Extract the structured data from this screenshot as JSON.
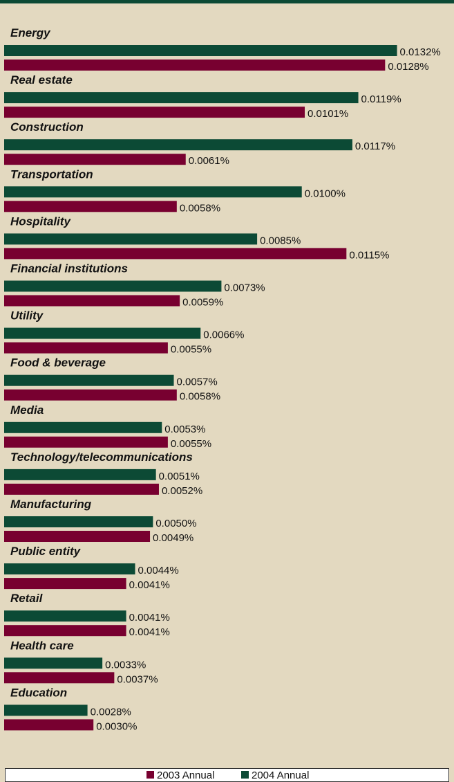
{
  "chart_data": {
    "type": "barh",
    "categories": [
      "Energy",
      "Real estate",
      "Construction",
      "Transportation",
      "Hospitality",
      "Financial institutions",
      "Utility",
      "Food & beverage",
      "Media",
      "Technology/telecommunications",
      "Manufacturing",
      "Public entity",
      "Retail",
      "Health care",
      "Education"
    ],
    "series": [
      {
        "name": "2003 Annual",
        "color": "#780030",
        "values": [
          0.0128,
          0.0101,
          0.0061,
          0.0058,
          0.0115,
          0.0059,
          0.0055,
          0.0058,
          0.0055,
          0.0052,
          0.0049,
          0.0041,
          0.0041,
          0.0037,
          0.003
        ],
        "value_labels": [
          "0.0128%",
          "0.0101%",
          "0.0061%",
          "0.0058%",
          "0.0115%",
          "0.0059%",
          "0.0055%",
          "0.0058%",
          "0.0055%",
          "0.0052%",
          "0.0049%",
          "0.0041%",
          "0.0041%",
          "0.0037%",
          "0.0030%"
        ]
      },
      {
        "name": "2004 Annual",
        "color": "#0c4a35",
        "values": [
          0.0132,
          0.0119,
          0.0117,
          0.01,
          0.0085,
          0.0073,
          0.0066,
          0.0057,
          0.0053,
          0.0051,
          0.005,
          0.0044,
          0.0041,
          0.0033,
          0.0028
        ],
        "value_labels": [
          "0.0132%",
          "0.0119%",
          "0.0117%",
          "0.0100%",
          "0.0085%",
          "0.0073%",
          "0.0066%",
          "0.0057%",
          "0.0053%",
          "0.0051%",
          "0.0050%",
          "0.0044%",
          "0.0041%",
          "0.0033%",
          "0.0028%"
        ]
      }
    ],
    "xlim": [
      0,
      0.014
    ]
  }
}
